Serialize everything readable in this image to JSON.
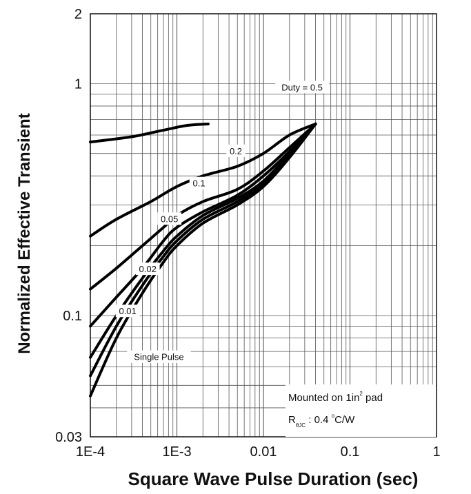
{
  "chart_data": {
    "type": "line",
    "title": "",
    "xlabel": "Square Wave Pulse Duration (sec)",
    "ylabel": "Normalized Effective Transient",
    "xscale": "log",
    "yscale": "log",
    "xlim": [
      0.0001,
      1
    ],
    "ylim": [
      0.03,
      2
    ],
    "x_ticks": [
      {
        "value": 0.0001,
        "label": "1E-4"
      },
      {
        "value": 0.001,
        "label": "1E-3"
      },
      {
        "value": 0.01,
        "label": "0.01"
      },
      {
        "value": 0.1,
        "label": "0.1"
      },
      {
        "value": 1,
        "label": "1"
      }
    ],
    "y_ticks": [
      {
        "value": 0.03,
        "label": "0.03"
      },
      {
        "value": 0.1,
        "label": "0.1"
      },
      {
        "value": 1,
        "label": "1"
      },
      {
        "value": 2,
        "label": "2"
      }
    ],
    "grid": true,
    "series": [
      {
        "name": "Duty = 0.5",
        "x": [
          0.0001,
          0.0003,
          0.0007,
          0.0013,
          0.0023
        ],
        "y": [
          0.56,
          0.59,
          0.63,
          0.66,
          0.67
        ]
      },
      {
        "name": "0.2",
        "x": [
          0.0001,
          0.0002,
          0.0005,
          0.001,
          0.002,
          0.005,
          0.01,
          0.02,
          0.04
        ],
        "y": [
          0.22,
          0.26,
          0.31,
          0.36,
          0.4,
          0.44,
          0.5,
          0.6,
          0.67
        ]
      },
      {
        "name": "0.1",
        "x": [
          0.0001,
          0.0002,
          0.0004,
          0.0007,
          0.001,
          0.002,
          0.005,
          0.01,
          0.02,
          0.04
        ],
        "y": [
          0.13,
          0.16,
          0.2,
          0.24,
          0.27,
          0.31,
          0.35,
          0.42,
          0.53,
          0.67
        ]
      },
      {
        "name": "0.05",
        "x": [
          0.0001,
          0.0002,
          0.0004,
          0.0007,
          0.001,
          0.002,
          0.005,
          0.01,
          0.02,
          0.04
        ],
        "y": [
          0.09,
          0.12,
          0.16,
          0.21,
          0.24,
          0.28,
          0.33,
          0.4,
          0.51,
          0.67
        ]
      },
      {
        "name": "0.02",
        "x": [
          0.0001,
          0.0002,
          0.0004,
          0.0007,
          0.001,
          0.002,
          0.005,
          0.01,
          0.02,
          0.04
        ],
        "y": [
          0.066,
          0.1,
          0.145,
          0.19,
          0.22,
          0.27,
          0.32,
          0.38,
          0.5,
          0.67
        ]
      },
      {
        "name": "0.01",
        "x": [
          0.0001,
          0.0002,
          0.0004,
          0.0007,
          0.001,
          0.002,
          0.005,
          0.01,
          0.02,
          0.04
        ],
        "y": [
          0.055,
          0.09,
          0.135,
          0.18,
          0.21,
          0.26,
          0.31,
          0.37,
          0.49,
          0.67
        ]
      },
      {
        "name": "Single Pulse",
        "x": [
          0.0001,
          0.0002,
          0.0004,
          0.0007,
          0.001,
          0.002,
          0.005,
          0.01,
          0.02,
          0.04
        ],
        "y": [
          0.045,
          0.08,
          0.125,
          0.17,
          0.2,
          0.25,
          0.3,
          0.36,
          0.48,
          0.67
        ]
      }
    ],
    "curve_labels": [
      {
        "text": "Duty = 0.5",
        "x": 0.028,
        "y": 0.96
      },
      {
        "text": "0.2",
        "x": 0.0048,
        "y": 0.51
      },
      {
        "text": "0.1",
        "x": 0.0018,
        "y": 0.37
      },
      {
        "text": "0.05",
        "x": 0.00082,
        "y": 0.26
      },
      {
        "text": "0.02",
        "x": 0.00046,
        "y": 0.158
      },
      {
        "text": "0.01",
        "x": 0.00027,
        "y": 0.104
      },
      {
        "text": "Single Pulse",
        "x": 0.00062,
        "y": 0.066
      }
    ],
    "annotation": {
      "line1_prefix": "Mounted on 1in",
      "line1_sup": "2",
      "line1_suffix": " pad",
      "line2_main": "R",
      "line2_sub": "θJC",
      "line2_value": " : 0.4 ",
      "line2_sup": "o",
      "line2_unit": "C/W"
    }
  }
}
